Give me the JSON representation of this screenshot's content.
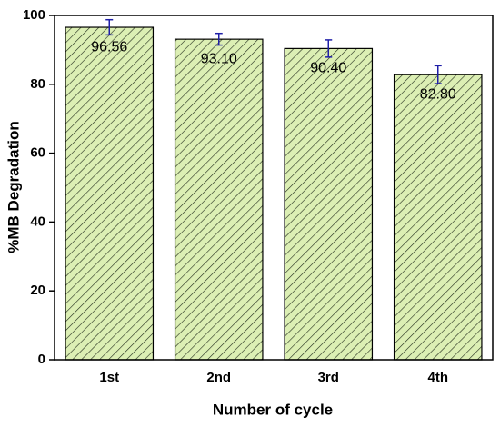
{
  "chart_data": {
    "type": "bar",
    "xlabel": "Number of cycle",
    "ylabel": "%MB Degradation",
    "categories": [
      "1st",
      "2nd",
      "3rd",
      "4th"
    ],
    "values": [
      96.56,
      93.1,
      90.4,
      82.8
    ],
    "value_labels": [
      "96.56",
      "93.10",
      "90.40",
      "82.80"
    ],
    "errors": [
      2.2,
      1.7,
      2.5,
      2.6
    ],
    "color": "#dcefb4",
    "hatch_color": "#1f2a1a",
    "error_color": "#1f1fa8",
    "ylim": [
      0,
      100
    ],
    "yticks": [
      0,
      20,
      40,
      60,
      80,
      100
    ]
  }
}
